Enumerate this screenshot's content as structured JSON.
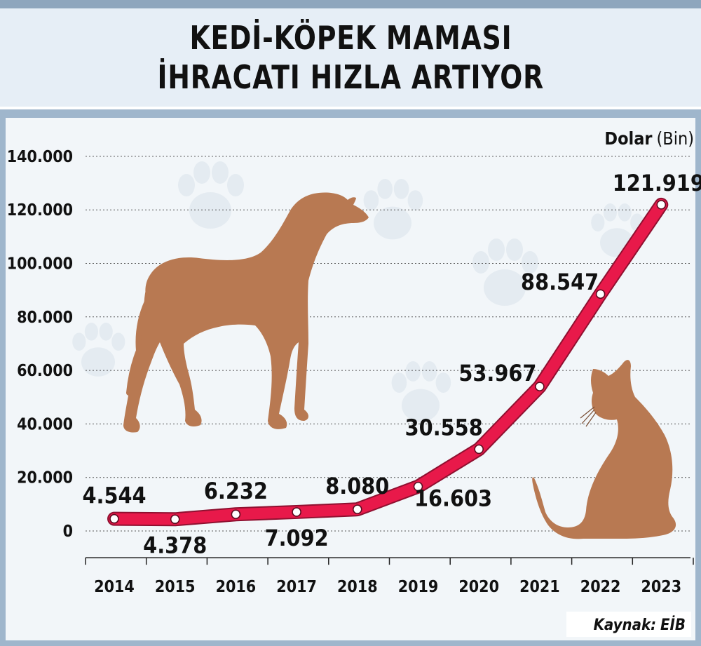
{
  "title": {
    "line1": "KEDİ-KÖPEK MAMASI",
    "line2": "İHRACATI HIZLA ARTIYOR"
  },
  "unit": {
    "bold": "Dolar",
    "normal": "(Bin)"
  },
  "source": {
    "label": "Kaynak:",
    "value": "EİB"
  },
  "colors": {
    "line": "#e8194a",
    "line_edge": "#8f1030",
    "animal": "#b87952",
    "gridline": "#555555",
    "background": "#f2f6f9"
  },
  "chart_data": {
    "type": "line",
    "title": "KEDİ-KÖPEK MAMASI İHRACATI HIZLA ARTIYOR",
    "ylabel": "Dolar (Bin)",
    "xlabel": "",
    "ylim": [
      -10000,
      140000
    ],
    "yticks": [
      0,
      20000,
      40000,
      60000,
      80000,
      100000,
      120000,
      140000
    ],
    "ytick_labels": [
      "0",
      "20.000",
      "40.000",
      "60.000",
      "80.000",
      "100.000",
      "120.000",
      "140.000"
    ],
    "grid": true,
    "categories": [
      "2014",
      "2015",
      "2016",
      "2017",
      "2018",
      "2019",
      "2020",
      "2021",
      "2022",
      "2023"
    ],
    "values": [
      4544,
      4378,
      6232,
      7092,
      8080,
      16603,
      30558,
      53967,
      88547,
      121919
    ],
    "data_labels": [
      "4.544",
      "4.378",
      "6.232",
      "7.092",
      "8.080",
      "16.603",
      "30.558",
      "53.967",
      "88.547",
      "121.919"
    ],
    "label_positions": [
      "above",
      "below",
      "above",
      "below",
      "above",
      "below",
      "above",
      "above",
      "above",
      "above"
    ]
  },
  "decorations": [
    "dog-silhouette-icon",
    "cat-silhouette-icon",
    "paw-print-icon"
  ]
}
